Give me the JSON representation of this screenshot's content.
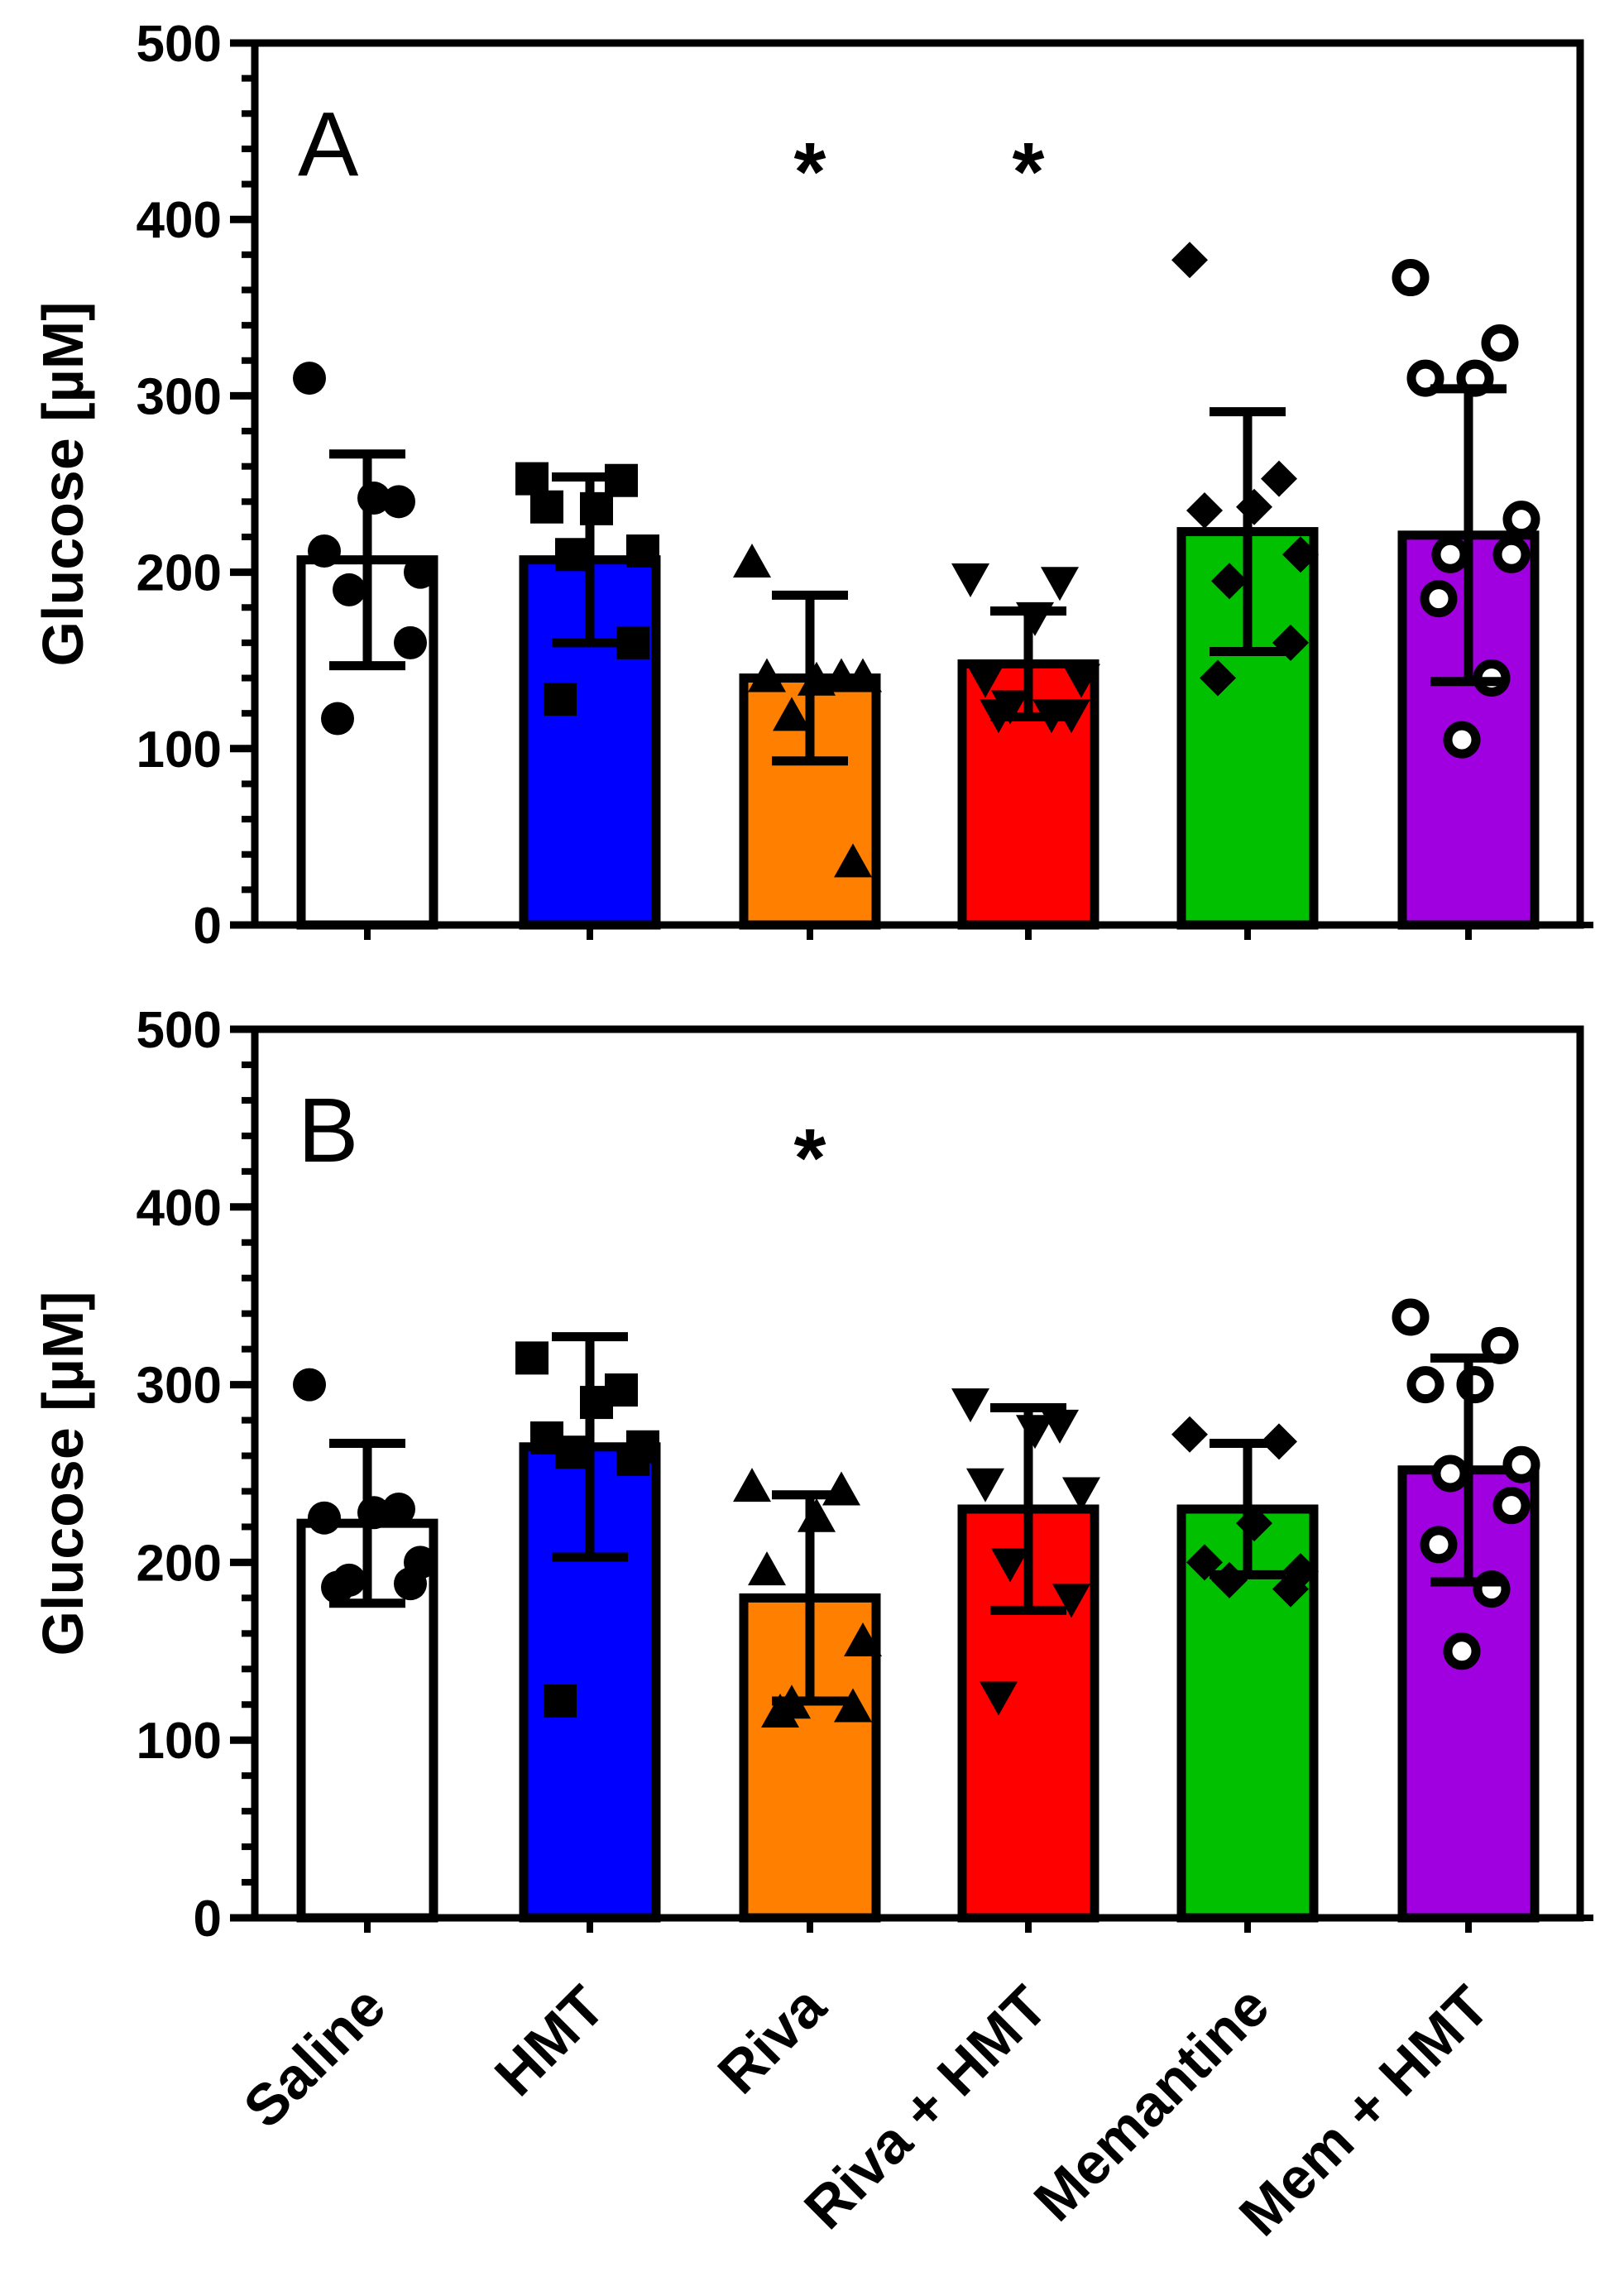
{
  "chart_data": [
    {
      "panel": "A",
      "type": "bar",
      "ylabel": "Glucose [µM]",
      "ylim": [
        0,
        500
      ],
      "yticks": [
        0,
        100,
        200,
        300,
        400,
        500
      ],
      "categories": [
        "Saline",
        "HMT",
        "Riva",
        "Riva + HMT",
        "Memantine",
        "Mem + HMT"
      ],
      "colors": [
        "#ffffff",
        "#0000ff",
        "#ff8000",
        "#ff0000",
        "#00c000",
        "#a000e0"
      ],
      "markers": [
        "circle",
        "square",
        "triangle-up",
        "triangle-down",
        "diamond",
        "circle-open"
      ],
      "means": [
        207,
        207,
        140,
        148,
        223,
        221
      ],
      "sd": [
        60,
        47,
        47,
        30,
        68,
        83
      ],
      "significance": [
        "",
        "",
        "*",
        "*",
        "",
        ""
      ],
      "points": [
        [
          310,
          240,
          242,
          212,
          200,
          190,
          160,
          117
        ],
        [
          253,
          252,
          236,
          237,
          212,
          210,
          160,
          128
        ],
        [
          205,
          140,
          138,
          140,
          140,
          118,
          35
        ],
        [
          197,
          195,
          175,
          140,
          140,
          125,
          120,
          120,
          120
        ],
        [
          377,
          253,
          237,
          235,
          210,
          195,
          160,
          140
        ],
        [
          367,
          330,
          310,
          310,
          230,
          210,
          210,
          185,
          140,
          105
        ]
      ]
    },
    {
      "panel": "B",
      "type": "bar",
      "ylabel": "Glucose [µM]",
      "ylim": [
        0,
        500
      ],
      "yticks": [
        0,
        100,
        200,
        300,
        400,
        500
      ],
      "categories": [
        "Saline",
        "HMT",
        "Riva",
        "Riva + HMT",
        "Memantine",
        "Mem + HMT"
      ],
      "colors": [
        "#ffffff",
        "#0000ff",
        "#ff8000",
        "#ff0000",
        "#00c000",
        "#a000e0"
      ],
      "markers": [
        "circle",
        "square",
        "triangle-up",
        "triangle-down",
        "diamond",
        "circle-open"
      ],
      "means": [
        222,
        265,
        180,
        230,
        230,
        252
      ],
      "sd": [
        45,
        62,
        58,
        57,
        37,
        63
      ],
      "significance": [
        "",
        "",
        "*",
        "",
        "",
        ""
      ],
      "points": [
        [
          300,
          230,
          228,
          225,
          200,
          190,
          188,
          186
        ],
        [
          315,
          297,
          290,
          270,
          265,
          262,
          258,
          122
        ],
        [
          242,
          240,
          225,
          195,
          155,
          120,
          118,
          115
        ],
        [
          290,
          278,
          275,
          245,
          240,
          200,
          180,
          125
        ],
        [
          272,
          268,
          222,
          200,
          195,
          190,
          185
        ],
        [
          338,
          322,
          300,
          300,
          255,
          250,
          232,
          210,
          185,
          150
        ]
      ]
    }
  ]
}
